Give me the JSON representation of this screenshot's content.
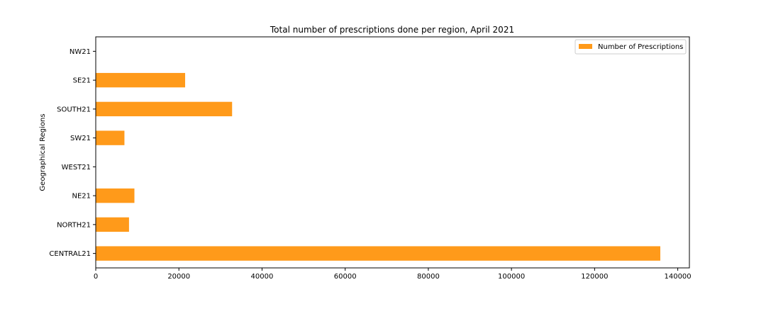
{
  "chart_data": {
    "type": "bar",
    "orientation": "horizontal",
    "title": "Total number of prescriptions done per region, April 2021",
    "xlabel": "",
    "ylabel": "Geographical Regions",
    "categories": [
      "CENTRAL21",
      "NORTH21",
      "NE21",
      "WEST21",
      "SW21",
      "SOUTH21",
      "SE21",
      "NW21"
    ],
    "series": [
      {
        "name": "Number of Prescriptions",
        "values": [
          135800,
          8000,
          9300,
          0,
          6900,
          32800,
          21500,
          0
        ],
        "color": "#ff9a1a"
      }
    ],
    "xlim": [
      0,
      142800
    ],
    "xticks": [
      0,
      20000,
      40000,
      60000,
      80000,
      100000,
      120000,
      140000
    ],
    "grid": false,
    "legend_position": "top-right"
  }
}
